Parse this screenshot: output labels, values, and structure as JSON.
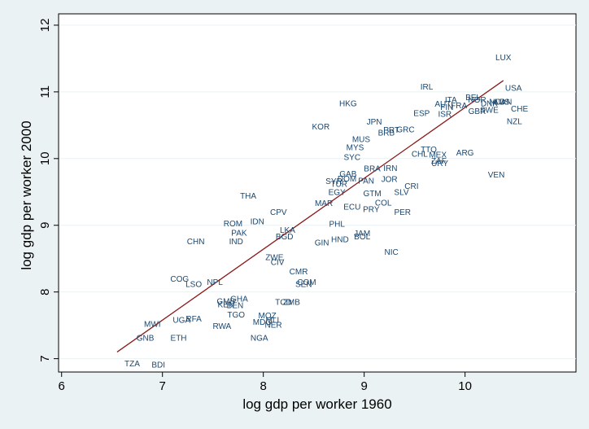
{
  "chart_data": {
    "type": "scatter",
    "xlabel": "log gdp per worker 1960",
    "ylabel": "log gdp per worker 2000",
    "xlim": [
      5.97,
      11.1
    ],
    "ylim": [
      6.8,
      12.17
    ],
    "xticks": [
      6,
      7,
      8,
      9,
      10
    ],
    "yticks": [
      7,
      8,
      9,
      10,
      11,
      12
    ],
    "grid": "horizontal",
    "point_color": "#1a476f",
    "fit_line_color": "#8b1a1a",
    "fit_line": {
      "x": [
        6.55,
        10.38
      ],
      "y": [
        7.1,
        11.17
      ]
    },
    "points": [
      {
        "label": "LUX",
        "x": 10.38,
        "y": 11.52
      },
      {
        "label": "USA",
        "x": 10.48,
        "y": 11.06
      },
      {
        "label": "IRL",
        "x": 9.62,
        "y": 11.08
      },
      {
        "label": "BEL",
        "x": 10.08,
        "y": 10.92
      },
      {
        "label": "ITA",
        "x": 9.86,
        "y": 10.88
      },
      {
        "label": "NOR",
        "x": 10.12,
        "y": 10.88
      },
      {
        "label": "NLD",
        "x": 10.32,
        "y": 10.85
      },
      {
        "label": "CAN",
        "x": 10.38,
        "y": 10.85
      },
      {
        "label": "AUT",
        "x": 9.78,
        "y": 10.82
      },
      {
        "label": "FRA",
        "x": 9.94,
        "y": 10.8
      },
      {
        "label": "DNK",
        "x": 10.24,
        "y": 10.83
      },
      {
        "label": "AUS",
        "x": 10.36,
        "y": 10.85
      },
      {
        "label": "FIN",
        "x": 9.82,
        "y": 10.77
      },
      {
        "label": "GBR",
        "x": 10.12,
        "y": 10.71
      },
      {
        "label": "SWE",
        "x": 10.24,
        "y": 10.73
      },
      {
        "label": "CHE",
        "x": 10.54,
        "y": 10.75
      },
      {
        "label": "ESP",
        "x": 9.57,
        "y": 10.68
      },
      {
        "label": "ISR",
        "x": 9.8,
        "y": 10.67
      },
      {
        "label": "NZL",
        "x": 10.49,
        "y": 10.56
      },
      {
        "label": "HKG",
        "x": 8.84,
        "y": 10.83
      },
      {
        "label": "JPN",
        "x": 9.1,
        "y": 10.55
      },
      {
        "label": "GRC",
        "x": 9.41,
        "y": 10.44
      },
      {
        "label": "PRT",
        "x": 9.27,
        "y": 10.43
      },
      {
        "label": "BRB",
        "x": 9.22,
        "y": 10.39
      },
      {
        "label": "KOR",
        "x": 8.57,
        "y": 10.48
      },
      {
        "label": "MUS",
        "x": 8.97,
        "y": 10.29
      },
      {
        "label": "MYS",
        "x": 8.91,
        "y": 10.17
      },
      {
        "label": "SYC",
        "x": 8.88,
        "y": 10.02
      },
      {
        "label": "TTO",
        "x": 9.64,
        "y": 10.14
      },
      {
        "label": "CHL",
        "x": 9.55,
        "y": 10.07
      },
      {
        "label": "MEX",
        "x": 9.73,
        "y": 10.06
      },
      {
        "label": "ZAF",
        "x": 9.74,
        "y": 9.97
      },
      {
        "label": "URY",
        "x": 9.75,
        "y": 9.93
      },
      {
        "label": "ARG",
        "x": 10.0,
        "y": 10.09
      },
      {
        "label": "VEN",
        "x": 10.31,
        "y": 9.76
      },
      {
        "label": "BRA",
        "x": 9.08,
        "y": 9.85
      },
      {
        "label": "IRN",
        "x": 9.26,
        "y": 9.86
      },
      {
        "label": "GAB",
        "x": 8.84,
        "y": 9.77
      },
      {
        "label": "DOM",
        "x": 8.83,
        "y": 9.7
      },
      {
        "label": "SYR",
        "x": 8.7,
        "y": 9.66
      },
      {
        "label": "TUR",
        "x": 8.75,
        "y": 9.62
      },
      {
        "label": "PAN",
        "x": 9.02,
        "y": 9.67
      },
      {
        "label": "JOR",
        "x": 9.25,
        "y": 9.69
      },
      {
        "label": "CRI",
        "x": 9.47,
        "y": 9.59
      },
      {
        "label": "EGY",
        "x": 8.73,
        "y": 9.5
      },
      {
        "label": "GTM",
        "x": 9.08,
        "y": 9.48
      },
      {
        "label": "SLV",
        "x": 9.37,
        "y": 9.5
      },
      {
        "label": "COL",
        "x": 9.19,
        "y": 9.34
      },
      {
        "label": "MAR",
        "x": 8.6,
        "y": 9.33
      },
      {
        "label": "ECU",
        "x": 8.88,
        "y": 9.28
      },
      {
        "label": "PRY",
        "x": 9.07,
        "y": 9.24
      },
      {
        "label": "PER",
        "x": 9.38,
        "y": 9.2
      },
      {
        "label": "THA",
        "x": 7.85,
        "y": 9.44
      },
      {
        "label": "CPV",
        "x": 8.15,
        "y": 9.2
      },
      {
        "label": "IDN",
        "x": 7.94,
        "y": 9.06
      },
      {
        "label": "ROM",
        "x": 7.7,
        "y": 9.03
      },
      {
        "label": "PHL",
        "x": 8.73,
        "y": 9.02
      },
      {
        "label": "LKA",
        "x": 8.24,
        "y": 8.93
      },
      {
        "label": "PAK",
        "x": 7.76,
        "y": 8.89
      },
      {
        "label": "BGD",
        "x": 8.21,
        "y": 8.83
      },
      {
        "label": "JAM",
        "x": 8.98,
        "y": 8.88
      },
      {
        "label": "BOL",
        "x": 8.98,
        "y": 8.83
      },
      {
        "label": "HND",
        "x": 8.76,
        "y": 8.79
      },
      {
        "label": "GIN",
        "x": 8.58,
        "y": 8.74
      },
      {
        "label": "CHN",
        "x": 7.33,
        "y": 8.76
      },
      {
        "label": "IND",
        "x": 7.73,
        "y": 8.76
      },
      {
        "label": "NIC",
        "x": 9.27,
        "y": 8.6
      },
      {
        "label": "ZWE",
        "x": 8.11,
        "y": 8.52
      },
      {
        "label": "CIV",
        "x": 8.14,
        "y": 8.45
      },
      {
        "label": "CMR",
        "x": 8.35,
        "y": 8.31
      },
      {
        "label": "COM",
        "x": 8.43,
        "y": 8.15
      },
      {
        "label": "SEN",
        "x": 8.4,
        "y": 8.12
      },
      {
        "label": "COG",
        "x": 7.17,
        "y": 8.2
      },
      {
        "label": "LSO",
        "x": 7.31,
        "y": 8.12
      },
      {
        "label": "NPL",
        "x": 7.52,
        "y": 8.15
      },
      {
        "label": "GHA",
        "x": 7.76,
        "y": 7.9
      },
      {
        "label": "GMB",
        "x": 7.63,
        "y": 7.86
      },
      {
        "label": "KEN",
        "x": 7.63,
        "y": 7.81
      },
      {
        "label": "BEN",
        "x": 7.72,
        "y": 7.8
      },
      {
        "label": "TCD",
        "x": 8.2,
        "y": 7.85
      },
      {
        "label": "ZMB",
        "x": 8.28,
        "y": 7.85
      },
      {
        "label": "TGO",
        "x": 7.73,
        "y": 7.66
      },
      {
        "label": "MOZ",
        "x": 8.04,
        "y": 7.65
      },
      {
        "label": "MDG",
        "x": 7.99,
        "y": 7.55
      },
      {
        "label": "MLI",
        "x": 8.09,
        "y": 7.58
      },
      {
        "label": "NER",
        "x": 8.1,
        "y": 7.51
      },
      {
        "label": "UGA",
        "x": 7.19,
        "y": 7.58
      },
      {
        "label": "RFA",
        "x": 7.31,
        "y": 7.6
      },
      {
        "label": "RWA",
        "x": 7.59,
        "y": 7.49
      },
      {
        "label": "MWI",
        "x": 6.9,
        "y": 7.52
      },
      {
        "label": "GNB",
        "x": 6.83,
        "y": 7.31
      },
      {
        "label": "ETH",
        "x": 7.16,
        "y": 7.31
      },
      {
        "label": "NGA",
        "x": 7.96,
        "y": 7.31
      },
      {
        "label": "TZA",
        "x": 6.7,
        "y": 6.93
      },
      {
        "label": "BDI",
        "x": 6.96,
        "y": 6.91
      }
    ]
  }
}
